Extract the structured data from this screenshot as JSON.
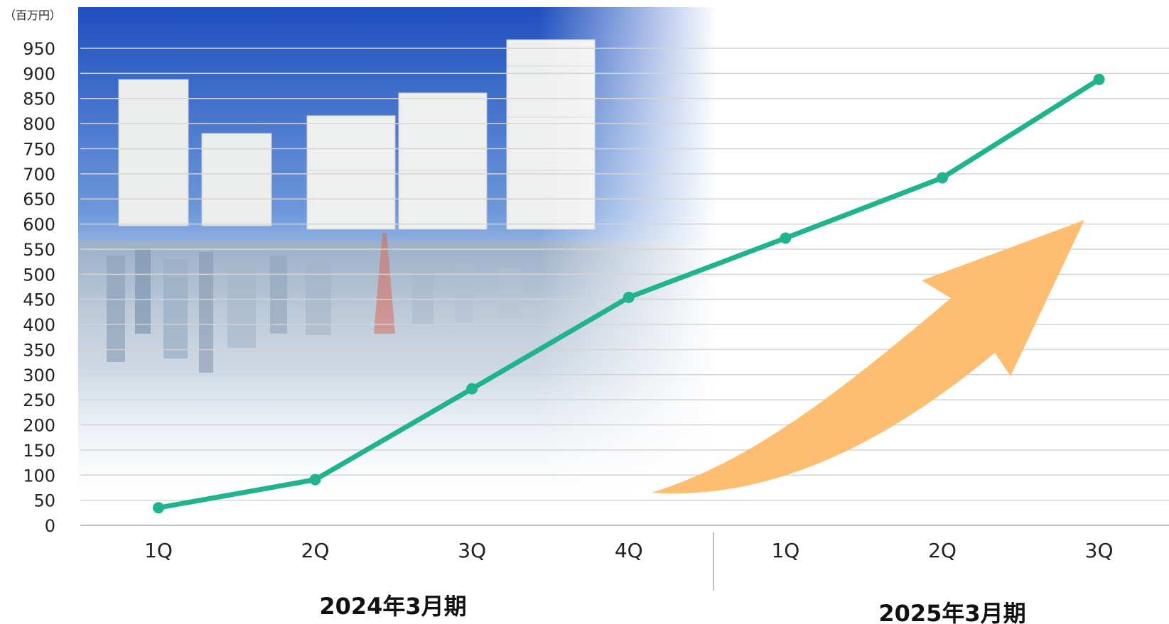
{
  "unit_label": "（百万円）",
  "period_labels": [
    "2024年3月期",
    "2025年3月期"
  ],
  "colors": {
    "line": "#1fb38e",
    "arrow": "#fdbb6a",
    "grid": "#d4d4d4",
    "axis": "#bfbfbf",
    "sky_top": "#1f4fbf",
    "sky_bottom": "#dce8f8"
  },
  "chart_data": {
    "type": "line",
    "title": "",
    "xlabel": "",
    "ylabel": "（百万円）",
    "categories": [
      "1Q",
      "2Q",
      "3Q",
      "4Q",
      "1Q",
      "2Q",
      "3Q"
    ],
    "groups": [
      {
        "label": "2024年3月期",
        "categories": [
          "1Q",
          "2Q",
          "3Q",
          "4Q"
        ]
      },
      {
        "label": "2025年3月期",
        "categories": [
          "1Q",
          "2Q",
          "3Q"
        ]
      }
    ],
    "series": [
      {
        "values": [
          35,
          91,
          272,
          454,
          572,
          692,
          888
        ]
      }
    ],
    "ylim": [
      0,
      950
    ],
    "yticks": [
      0,
      50,
      100,
      150,
      200,
      250,
      300,
      350,
      400,
      450,
      500,
      550,
      600,
      650,
      700,
      750,
      800,
      850,
      900,
      950
    ],
    "grid": true,
    "legend": "none",
    "decorations": [
      "background photo of battery storage units over a city skyline",
      "upward orange arrow"
    ]
  }
}
